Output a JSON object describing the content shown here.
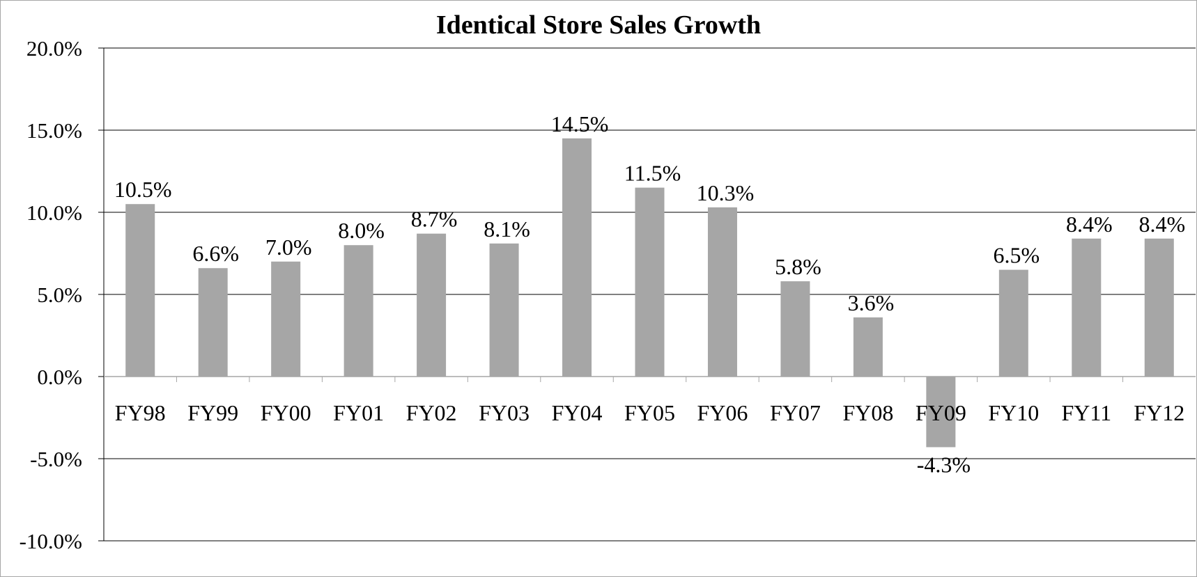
{
  "chart_data": {
    "type": "bar",
    "title": "Identical Store Sales Growth",
    "categories": [
      "FY98",
      "FY99",
      "FY00",
      "FY01",
      "FY02",
      "FY03",
      "FY04",
      "FY05",
      "FY06",
      "FY07",
      "FY08",
      "FY09",
      "FY10",
      "FY11",
      "FY12"
    ],
    "values": [
      10.5,
      6.6,
      7.0,
      8.0,
      8.7,
      8.1,
      14.5,
      11.5,
      10.3,
      5.8,
      3.6,
      -4.3,
      6.5,
      8.4,
      8.4
    ],
    "data_labels": [
      "10.5%",
      "6.6%",
      "7.0%",
      "8.0%",
      "8.7%",
      "8.1%",
      "14.5%",
      "11.5%",
      "10.3%",
      "5.8%",
      "3.6%",
      "-4.3%",
      "6.5%",
      "8.4%",
      "8.4%"
    ],
    "y_ticks": [
      "-10.0%",
      "-5.0%",
      "0.0%",
      "5.0%",
      "10.0%",
      "15.0%",
      "20.0%"
    ],
    "ylim": [
      -10,
      20
    ],
    "ytick_step": 5,
    "grid": true,
    "bar_color": "#a6a6a6",
    "xlabel": "",
    "ylabel": ""
  }
}
